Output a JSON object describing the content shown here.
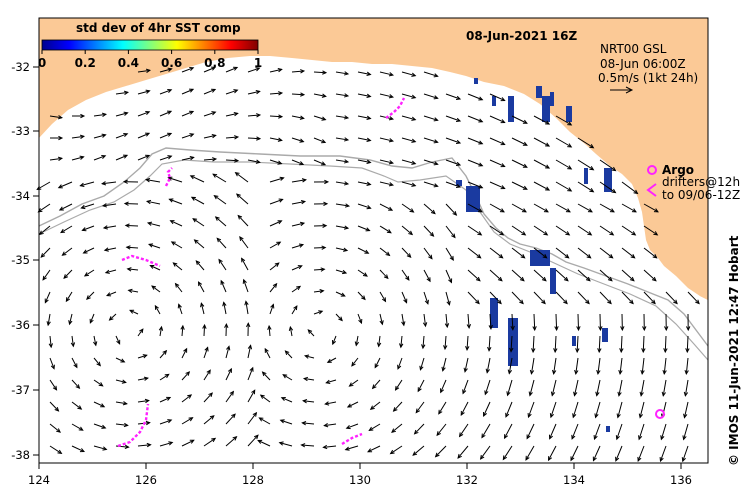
{
  "title": "08-Jun-2021 16Z",
  "colorbar": {
    "title": "std dev of 4hr SST comp",
    "ticks": [
      "0",
      "0.2",
      "0.4",
      "0.6",
      "0.8",
      "1"
    ]
  },
  "info": {
    "product": "NRT00 GSL",
    "valid_time": "08-Jun 06:00Z",
    "scale": "0.5m/s (1kt 24h)"
  },
  "argo": {
    "label": "Argo",
    "drifters_line1": "drifters@12h",
    "drifters_line2": "to 09/06-12Z"
  },
  "credit": "©  IMOS 11-Jun-2021 12:47 Hobart",
  "axes": {
    "x_ticks": [
      "124",
      "126",
      "128",
      "130",
      "132",
      "134",
      "136"
    ],
    "y_ticks": [
      "-32",
      "-33",
      "-34",
      "-35",
      "-36",
      "-37",
      "-38"
    ]
  },
  "colors": {
    "land": "#fbc996",
    "drifter": "#ff22ff",
    "shelf": "#aaaaaa",
    "sst_patch": "#1a3aa0"
  }
}
